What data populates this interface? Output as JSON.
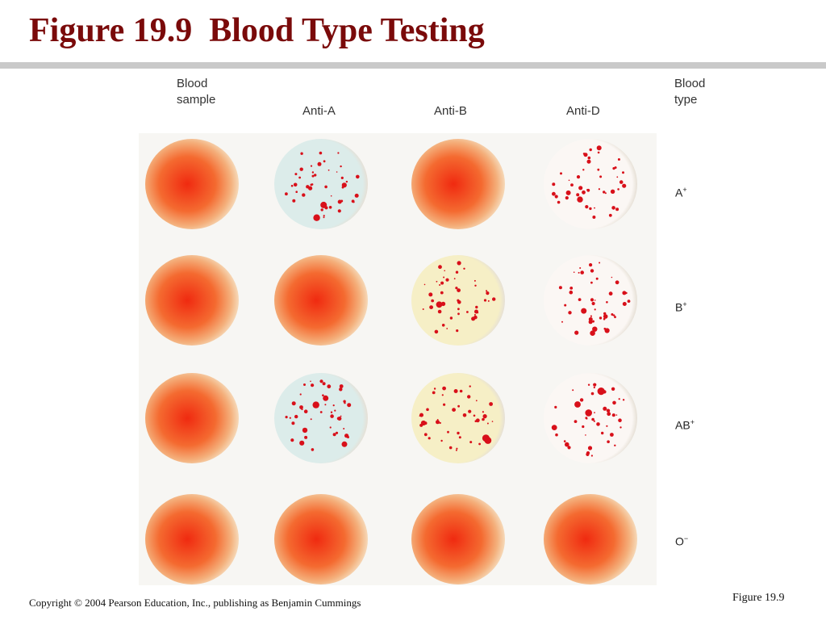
{
  "title": "Figure 19.9  Blood Type Testing",
  "columns": {
    "sample_line1": "Blood",
    "sample_line2": "sample",
    "anti_a": "Anti-A",
    "anti_b": "Anti-B",
    "anti_d": "Anti-D",
    "type_line1": "Blood",
    "type_line2": "type"
  },
  "rows": [
    {
      "type": "A",
      "rh": "+",
      "results": {
        "anti_a": "clumped",
        "anti_b": "smooth",
        "anti_d": "clumped"
      }
    },
    {
      "type": "B",
      "rh": "+",
      "results": {
        "anti_a": "smooth",
        "anti_b": "clumped",
        "anti_d": "clumped"
      }
    },
    {
      "type": "AB",
      "rh": "+",
      "results": {
        "anti_a": "clumped",
        "anti_b": "clumped",
        "anti_d": "clumped"
      }
    },
    {
      "type": "O",
      "rh": "−",
      "results": {
        "anti_a": "smooth",
        "anti_b": "smooth",
        "anti_d": "smooth"
      }
    }
  ],
  "colors": {
    "title": "#7a0a0a",
    "blood_red": "#f02a10",
    "clump_red": "#d8101a",
    "anti_a_tint": "#dcecea",
    "anti_b_tint": "#f6efc6",
    "anti_d_tint": "#fbf7f4"
  },
  "footer": {
    "copyright": "Copyright © 2004 Pearson Education, Inc., publishing as Benjamin Cummings",
    "figure_ref": "Figure 19.9"
  }
}
